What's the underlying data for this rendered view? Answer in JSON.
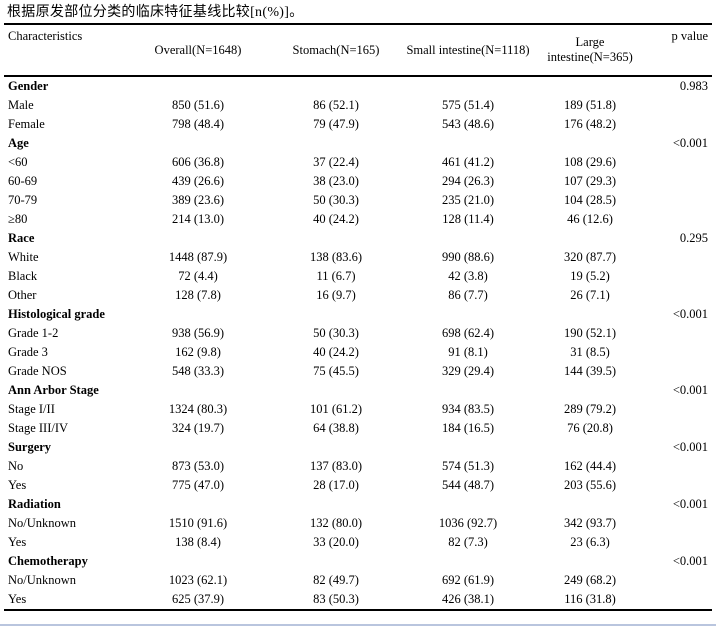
{
  "title": "根据原发部位分类的临床特征基线比较[n(%)]。",
  "table": {
    "header": {
      "characteristics": "Characteristics",
      "columns": [
        "Overall(N=1648)",
        "Stomach(N=165)",
        "Small intestine(N=1118)",
        "Large intestine(N=365)"
      ],
      "p_value": "p value"
    },
    "sections": [
      {
        "label": "Gender",
        "p": "0.983",
        "rows": [
          {
            "label": "Male",
            "values": [
              "850 (51.6)",
              "86 (52.1)",
              "575 (51.4)",
              "189 (51.8)"
            ]
          },
          {
            "label": "Female",
            "values": [
              "798 (48.4)",
              "79 (47.9)",
              "543 (48.6)",
              "176 (48.2)"
            ]
          }
        ]
      },
      {
        "label": "Age",
        "p": "<0.001",
        "rows": [
          {
            "label": "<60",
            "values": [
              "606 (36.8)",
              "37 (22.4)",
              "461 (41.2)",
              "108 (29.6)"
            ]
          },
          {
            "label": "60-69",
            "values": [
              "439 (26.6)",
              "38 (23.0)",
              "294 (26.3)",
              "107 (29.3)"
            ]
          },
          {
            "label": "70-79",
            "values": [
              "389 (23.6)",
              "50 (30.3)",
              "235 (21.0)",
              "104 (28.5)"
            ]
          },
          {
            "label": "≥80",
            "values": [
              "214 (13.0)",
              "40 (24.2)",
              "128 (11.4)",
              "46 (12.6)"
            ]
          }
        ]
      },
      {
        "label": "Race",
        "p": "0.295",
        "rows": [
          {
            "label": "White",
            "values": [
              "1448 (87.9)",
              "138 (83.6)",
              "990 (88.6)",
              "320 (87.7)"
            ]
          },
          {
            "label": "Black",
            "values": [
              "72 (4.4)",
              "11 (6.7)",
              "42 (3.8)",
              "19 (5.2)"
            ]
          },
          {
            "label": "Other",
            "values": [
              "128 (7.8)",
              "16 (9.7)",
              "86 (7.7)",
              "26 (7.1)"
            ]
          }
        ]
      },
      {
        "label": "Histological grade",
        "p": "<0.001",
        "rows": [
          {
            "label": "Grade 1-2",
            "values": [
              "938 (56.9)",
              "50 (30.3)",
              "698 (62.4)",
              "190 (52.1)"
            ]
          },
          {
            "label": "Grade 3",
            "values": [
              "162 (9.8)",
              "40 (24.2)",
              "91 (8.1)",
              "31 (8.5)"
            ]
          },
          {
            "label": "Grade NOS",
            "values": [
              "548 (33.3)",
              "75 (45.5)",
              "329 (29.4)",
              "144 (39.5)"
            ]
          }
        ]
      },
      {
        "label": "Ann Arbor Stage",
        "p": "<0.001",
        "rows": [
          {
            "label": "Stage I/II",
            "values": [
              "1324 (80.3)",
              "101 (61.2)",
              "934 (83.5)",
              "289 (79.2)"
            ]
          },
          {
            "label": "Stage III/IV",
            "values": [
              "324 (19.7)",
              "64 (38.8)",
              "184 (16.5)",
              "76 (20.8)"
            ]
          }
        ]
      },
      {
        "label": "Surgery",
        "p": "<0.001",
        "rows": [
          {
            "label": "No",
            "values": [
              "873 (53.0)",
              "137 (83.0)",
              "574 (51.3)",
              "162 (44.4)"
            ]
          },
          {
            "label": "Yes",
            "values": [
              "775 (47.0)",
              "28 (17.0)",
              "544 (48.7)",
              "203 (55.6)"
            ]
          }
        ]
      },
      {
        "label": "Radiation",
        "p": "<0.001",
        "rows": [
          {
            "label": "No/Unknown",
            "values": [
              "1510 (91.6)",
              "132 (80.0)",
              "1036 (92.7)",
              "342 (93.7)"
            ]
          },
          {
            "label": "Yes",
            "values": [
              "138 (8.4)",
              "33 (20.0)",
              "82 (7.3)",
              "23 (6.3)"
            ]
          }
        ]
      },
      {
        "label": "Chemotherapy",
        "p": "<0.001",
        "rows": [
          {
            "label": "No/Unknown",
            "values": [
              "1023 (62.1)",
              "82 (49.7)",
              "692 (61.9)",
              "249 (68.2)"
            ]
          },
          {
            "label": "Yes",
            "values": [
              "625 (37.9)",
              "83 (50.3)",
              "426 (38.1)",
              "116 (31.8)"
            ]
          }
        ]
      }
    ]
  }
}
